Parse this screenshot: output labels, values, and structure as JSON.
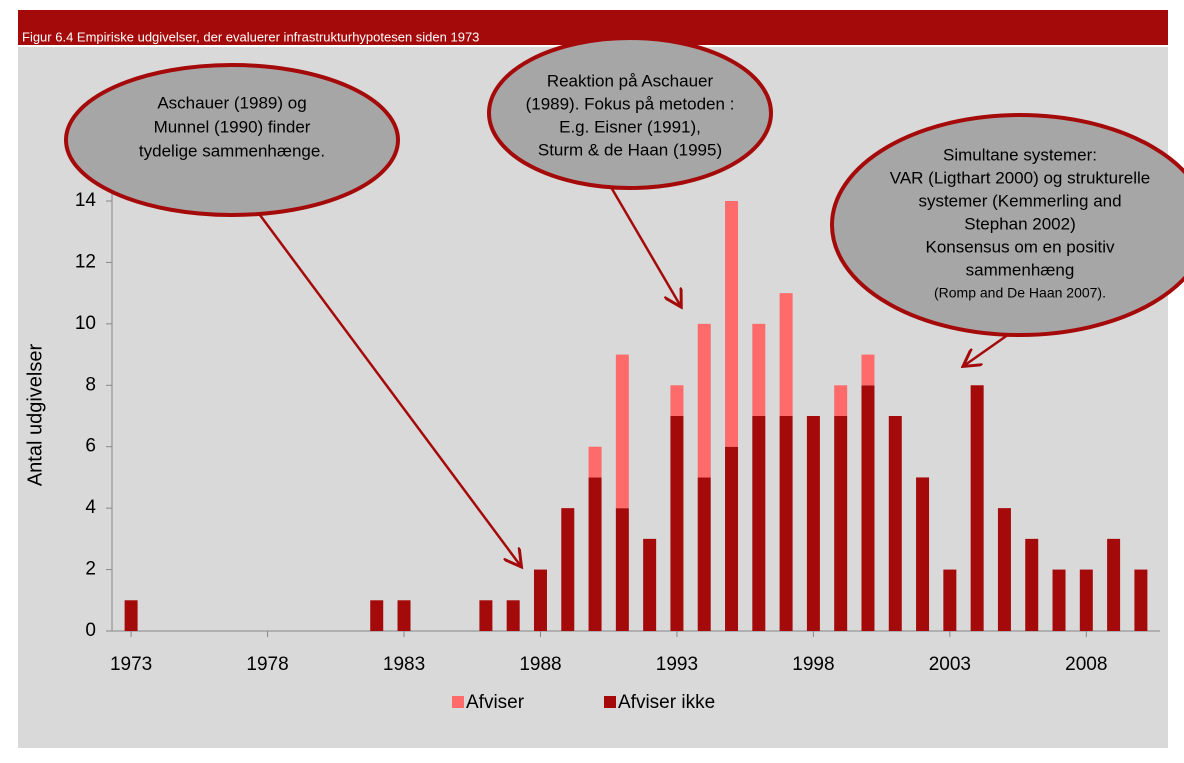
{
  "chart_data": {
    "type": "stacked_bar",
    "title": "Figur 6.4 Empiriske udgivelser, der evaluerer infrastrukturhypotesen siden 1973",
    "ylabel": "Antal udgivelser",
    "x": [
      1973,
      1982,
      1983,
      1986,
      1987,
      1988,
      1989,
      1990,
      1991,
      1992,
      1993,
      1994,
      1995,
      1996,
      1997,
      1998,
      1999,
      2000,
      2001,
      2002,
      2003,
      2004,
      2005,
      2006,
      2007,
      2008,
      2009,
      2010
    ],
    "series": [
      {
        "name": "Afviser",
        "color": "#ff6b6b",
        "values": [
          0,
          0,
          0,
          0,
          0,
          0,
          0,
          1,
          5,
          0,
          1,
          5,
          8,
          3,
          4,
          0,
          1,
          1,
          0,
          0,
          0,
          0,
          0,
          0,
          0,
          0,
          0,
          0
        ]
      },
      {
        "name": "Afviser ikke",
        "color": "#a50a0a",
        "values": [
          1,
          1,
          1,
          1,
          1,
          2,
          4,
          5,
          4,
          3,
          7,
          5,
          6,
          7,
          7,
          7,
          7,
          8,
          7,
          5,
          2,
          8,
          4,
          3,
          2,
          2,
          3,
          2
        ]
      }
    ],
    "stack_order": [
      1,
      0
    ],
    "xlim": [
      1972.3,
      2010.7
    ],
    "xticks": [
      1973,
      1978,
      1983,
      1988,
      1993,
      1998,
      2003,
      2008
    ],
    "ylim": [
      0,
      14
    ],
    "yticks": [
      0,
      2,
      4,
      6,
      8,
      10,
      12,
      14
    ],
    "annotations": [
      {
        "lines": [
          "Aschauer (1989) og",
          "Munnel (1990) finder",
          "tydelige sammenhænge."
        ]
      },
      {
        "lines": [
          "Reaktion på Aschauer",
          "(1989). Fokus på metoden :",
          "E.g. Eisner (1991),",
          "Sturm & de Haan (1995)"
        ]
      },
      {
        "lines": [
          "Simultane systemer:",
          "VAR (Ligthart 2000) og strukturelle",
          "systemer (Kemmerling and",
          "Stephan 2002)",
          "Konsensus om en positiv",
          "sammenhæng",
          "(Romp and De Haan 2007)."
        ]
      }
    ]
  }
}
